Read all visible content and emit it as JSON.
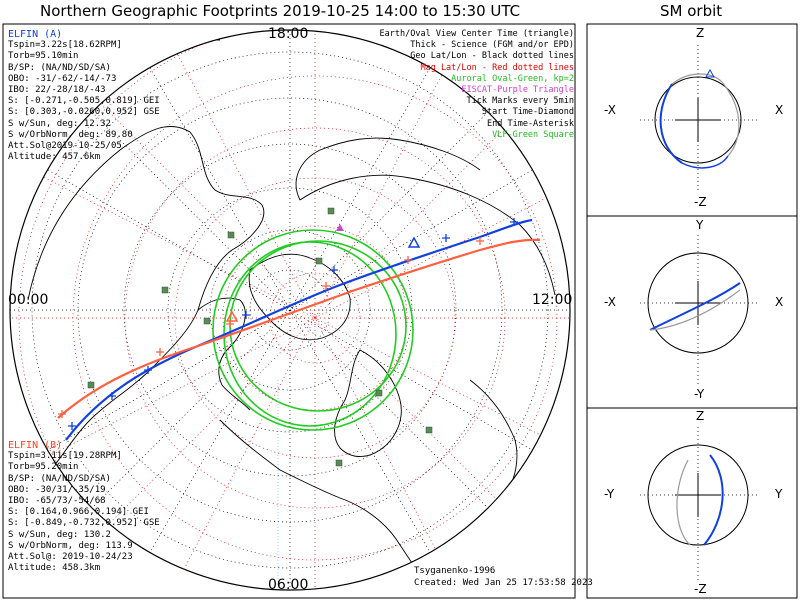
{
  "title": "Northern Geographic Footprints 2019-10-25 14:00 to 15:30 UTC",
  "side_title": "SM orbit",
  "clock_labels": {
    "top": "18:00",
    "left": "00:00",
    "right": "12:00",
    "bottom": "06:00"
  },
  "elfin_a": {
    "name": "ELFIN (A)",
    "color": "#1040e0",
    "lines": [
      "Tspin=3.22s[18.62RPM]",
      "Torb=95.10min",
      "B/SP: (NA/ND/SD/SA)",
      "OBO: -31/-62/-14/-73",
      "IBO: 22/-28/18/-43",
      "S: [-0.271,-0.505,0.819] GEI",
      "S: [0.303,-0.0260,0.952] GSE",
      "S w/Sun, deg: 12.32",
      "S w/OrbNorm, deg: 89.80",
      "Att.Sol@2019-10-25/05",
      "Altitude: 457.6km"
    ]
  },
  "elfin_b": {
    "name": "ELFIN (B)",
    "color": "#ff4020",
    "lines": [
      "Tspin=3.11s[19.28RPM]",
      "Torb=95.20min",
      "B/SP: (NA/ND/SD/SA)",
      "OBO: -30/31/-35/19",
      "IBO: -65/73/-54/68",
      "S: [0.164,0.966,0.194] GEI",
      "S: [-0.849,-0.732,0.952] GSE",
      "S w/Sun, deg: 130.2",
      "S w/OrbNorm, deg: 113.9",
      "Att.Sol@: 2019-10-24/23",
      "Altitude: 458.3km"
    ]
  },
  "legend": [
    {
      "text": "Earth/Oval View Center Time (triangle)",
      "color": "#000000"
    },
    {
      "text": "Thick - Science (FGM and/or EPD)",
      "color": "#000000"
    },
    {
      "text": "Geo Lat/Lon - Black dotted lines",
      "color": "#000000"
    },
    {
      "text": "Mag Lat/Lon - Red dotted lines",
      "color": "#e00000"
    },
    {
      "text": "Auroral Oval-Green, kp=2",
      "color": "#22bb22"
    },
    {
      "text": "EISCAT-Purple Triangle",
      "color": "#cc44cc"
    },
    {
      "text": "Tick Marks every 5min",
      "color": "#000000"
    },
    {
      "text": "Start Time-Diamond",
      "color": "#000000"
    },
    {
      "text": "End Time-Asterisk",
      "color": "#000000"
    },
    {
      "text": "VLF-Green Square",
      "color": "#22bb22"
    }
  ],
  "credits": {
    "model": "Tsyganenko-1996",
    "created": "Created: Wed Jan 25 17:53:58 2023"
  },
  "colors": {
    "grid_geo": "#000000",
    "grid_mag": "#e00000",
    "oval": "#22cc22",
    "elfin_a": "#1040e0",
    "elfin_b": "#ff6040",
    "eiscat": "#cc44cc",
    "vlf": "#5a8a5a"
  },
  "sm_panels": [
    {
      "top": "Z",
      "bottom": "-Z",
      "left": "-X",
      "right": "X"
    },
    {
      "top": "Y",
      "bottom": "-Y",
      "left": "-X",
      "right": "X"
    },
    {
      "top": "Z",
      "bottom": "-Z",
      "left": "-Y",
      "right": "Y"
    }
  ],
  "chart_data": {
    "type": "map",
    "projection": "north polar stereographic",
    "clock_positions": [
      "00:00",
      "06:00",
      "12:00",
      "18:00"
    ],
    "series": [
      {
        "name": "ELFIN (A)",
        "color": "#1040e0"
      },
      {
        "name": "ELFIN (B)",
        "color": "#ff6040"
      }
    ],
    "grid": true
  }
}
